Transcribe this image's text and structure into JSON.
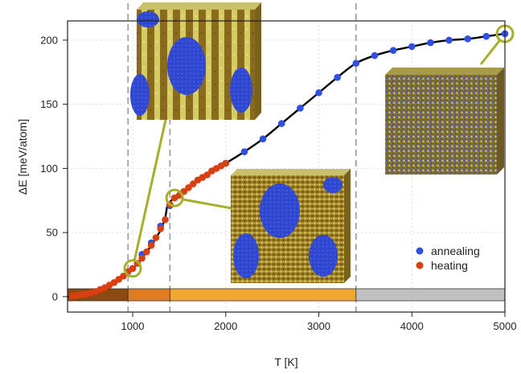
{
  "chart_data": {
    "type": "scatter",
    "xlabel": "T [K]",
    "ylabel": "ΔE [meV/atom]",
    "xlim": [
      300,
      5000
    ],
    "ylim": [
      -12,
      215
    ],
    "xticks": [
      1000,
      2000,
      3000,
      4000,
      5000
    ],
    "yticks": [
      0,
      50,
      100,
      150,
      200
    ],
    "grid": true,
    "legend_position": "bottom-right",
    "series": [
      {
        "name": "annealing",
        "color": "#2f4fe6",
        "x": [
          1000,
          1100,
          1200,
          1300,
          1400,
          2000,
          2200,
          2400,
          2600,
          2800,
          3000,
          3200,
          3400,
          3600,
          3800,
          4000,
          4200,
          4400,
          4600,
          4800,
          5000
        ],
        "y": [
          22,
          33,
          42,
          55,
          71,
          104,
          113,
          123,
          135,
          147,
          159,
          171,
          182,
          188,
          192,
          195,
          198,
          200,
          201,
          203,
          205
        ]
      },
      {
        "name": "heating",
        "color": "#d93f10",
        "x": [
          350,
          400,
          450,
          500,
          550,
          600,
          650,
          700,
          750,
          800,
          850,
          900,
          950,
          1000,
          1050,
          1100,
          1150,
          1200,
          1250,
          1300,
          1350,
          1400,
          1450,
          1500,
          1550,
          1600,
          1650,
          1700,
          1750,
          1800,
          1850,
          1900,
          1950,
          2000
        ],
        "y": [
          0.5,
          1,
          1.5,
          2,
          3,
          4,
          5.5,
          7,
          9,
          11,
          13.5,
          16,
          19.5,
          22,
          26,
          30,
          35,
          40,
          46,
          53,
          60,
          72,
          77,
          79,
          82,
          85,
          88,
          91,
          93,
          95,
          98,
          100,
          102,
          104
        ]
      }
    ],
    "curve": {
      "color": "#000000",
      "x": [
        300,
        400,
        500,
        600,
        700,
        800,
        900,
        1000,
        1100,
        1200,
        1300,
        1350,
        1370,
        1400,
        1450,
        1500,
        1600,
        1700,
        1800,
        1900,
        2000,
        2200,
        2400,
        2600,
        2800,
        3000,
        3200,
        3400,
        3600,
        3800,
        4000,
        4200,
        4400,
        4600,
        4800,
        5000
      ],
      "y": [
        0,
        1,
        2,
        4,
        7,
        11,
        16,
        22,
        30,
        40,
        52,
        62,
        70,
        74,
        77,
        79,
        85,
        90,
        95,
        100,
        104,
        113,
        123,
        135,
        147,
        159,
        171,
        182,
        188,
        192,
        195,
        198,
        200,
        201,
        203,
        205
      ]
    },
    "vlines": [
      950,
      1400,
      3400
    ],
    "phase_bar": [
      {
        "from": 300,
        "to": 950,
        "color": "#8a4a12"
      },
      {
        "from": 950,
        "to": 1400,
        "color": "#e07b20"
      },
      {
        "from": 1400,
        "to": 3400,
        "color": "#f0a830"
      },
      {
        "from": 3400,
        "to": 5000,
        "color": "#c0c0c0"
      }
    ],
    "markers": [
      {
        "x": 1000,
        "y": 22
      },
      {
        "x": 1450,
        "y": 77
      },
      {
        "x": 5000,
        "y": 205
      }
    ],
    "marker_color": "#a5b02a"
  },
  "insets": [
    {
      "pattern": "lamellar",
      "colors": [
        "#8a6a1c",
        "#d8d06a",
        "#3a4fd8"
      ]
    },
    {
      "pattern": "blobs",
      "colors": [
        "#8a6a1c",
        "#d8d06a",
        "#3a4fd8"
      ]
    },
    {
      "pattern": "random",
      "colors": [
        "#8a6a1c",
        "#d8d06a",
        "#3a4fd8"
      ]
    }
  ]
}
